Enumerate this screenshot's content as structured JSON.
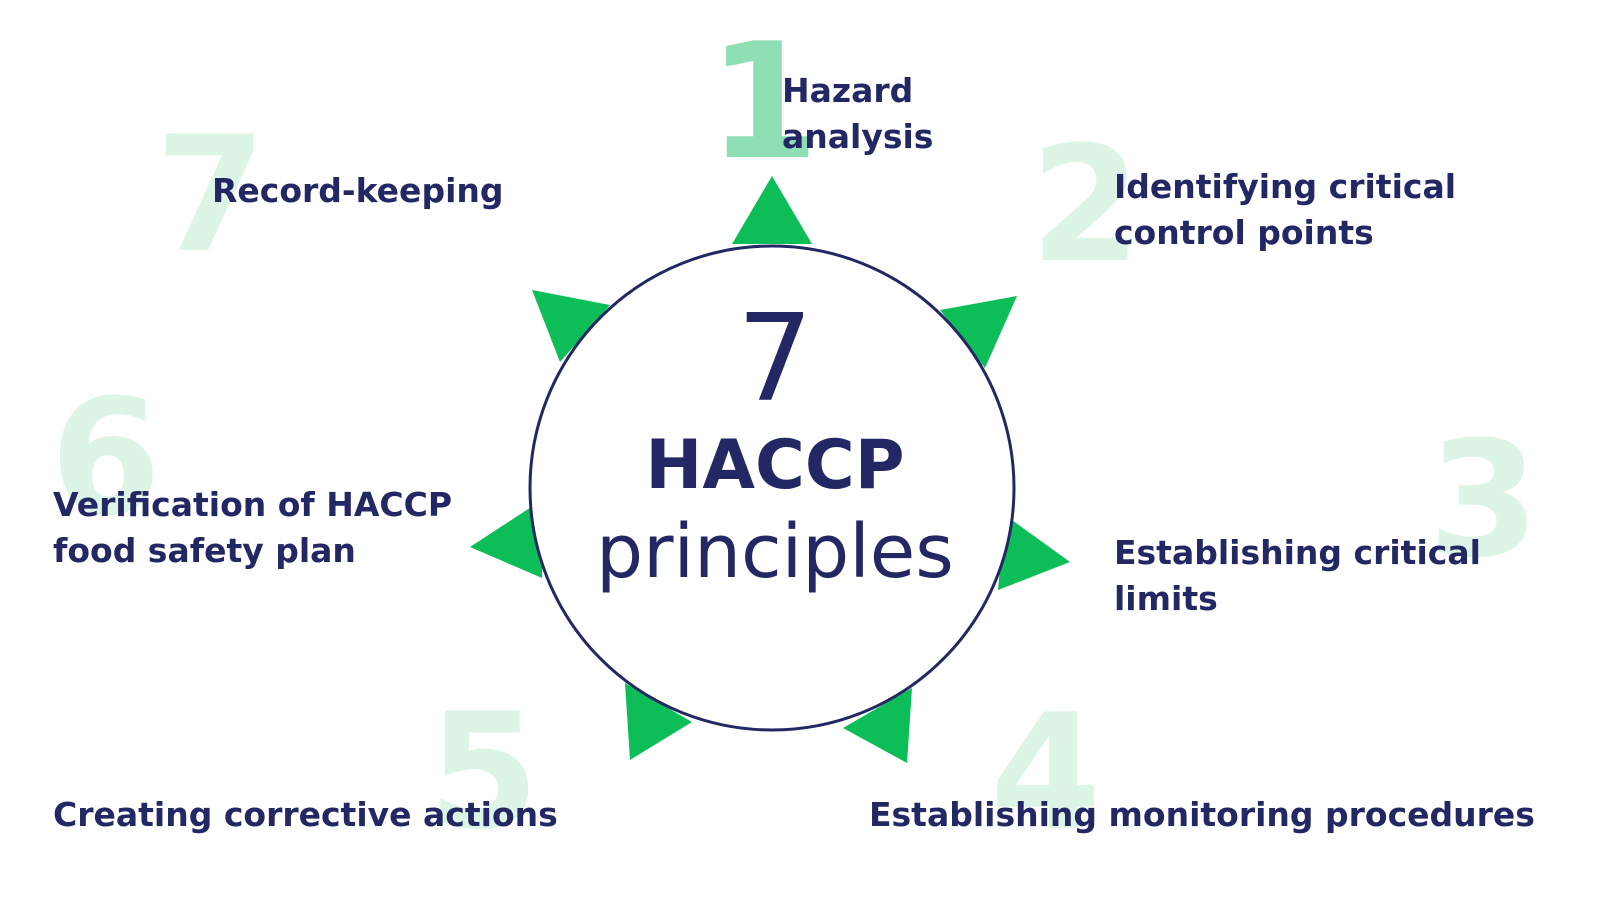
{
  "center": {
    "number": "7",
    "title": "HACCP",
    "subtitle": "principles"
  },
  "principles": [
    {
      "number": "1",
      "line1": "Hazard",
      "line2": "analysis"
    },
    {
      "number": "2",
      "line1": "Identifying critical",
      "line2": "control points"
    },
    {
      "number": "3",
      "line1": "Establishing critical",
      "line2": "limits"
    },
    {
      "number": "4",
      "line1": "Establishing monitoring procedures",
      "line2": ""
    },
    {
      "number": "5",
      "line1": "Creating corrective actions",
      "line2": ""
    },
    {
      "number": "6",
      "line1": "Verification of HACCP",
      "line2": "food safety plan"
    },
    {
      "number": "7",
      "line1": "Record-keeping",
      "line2": ""
    }
  ],
  "colors": {
    "text": "#232763",
    "triangle": "#0dbd58",
    "circle_border": "#232763",
    "number_faint": "#ddf5e6",
    "number_first": "#8ee0b4"
  }
}
